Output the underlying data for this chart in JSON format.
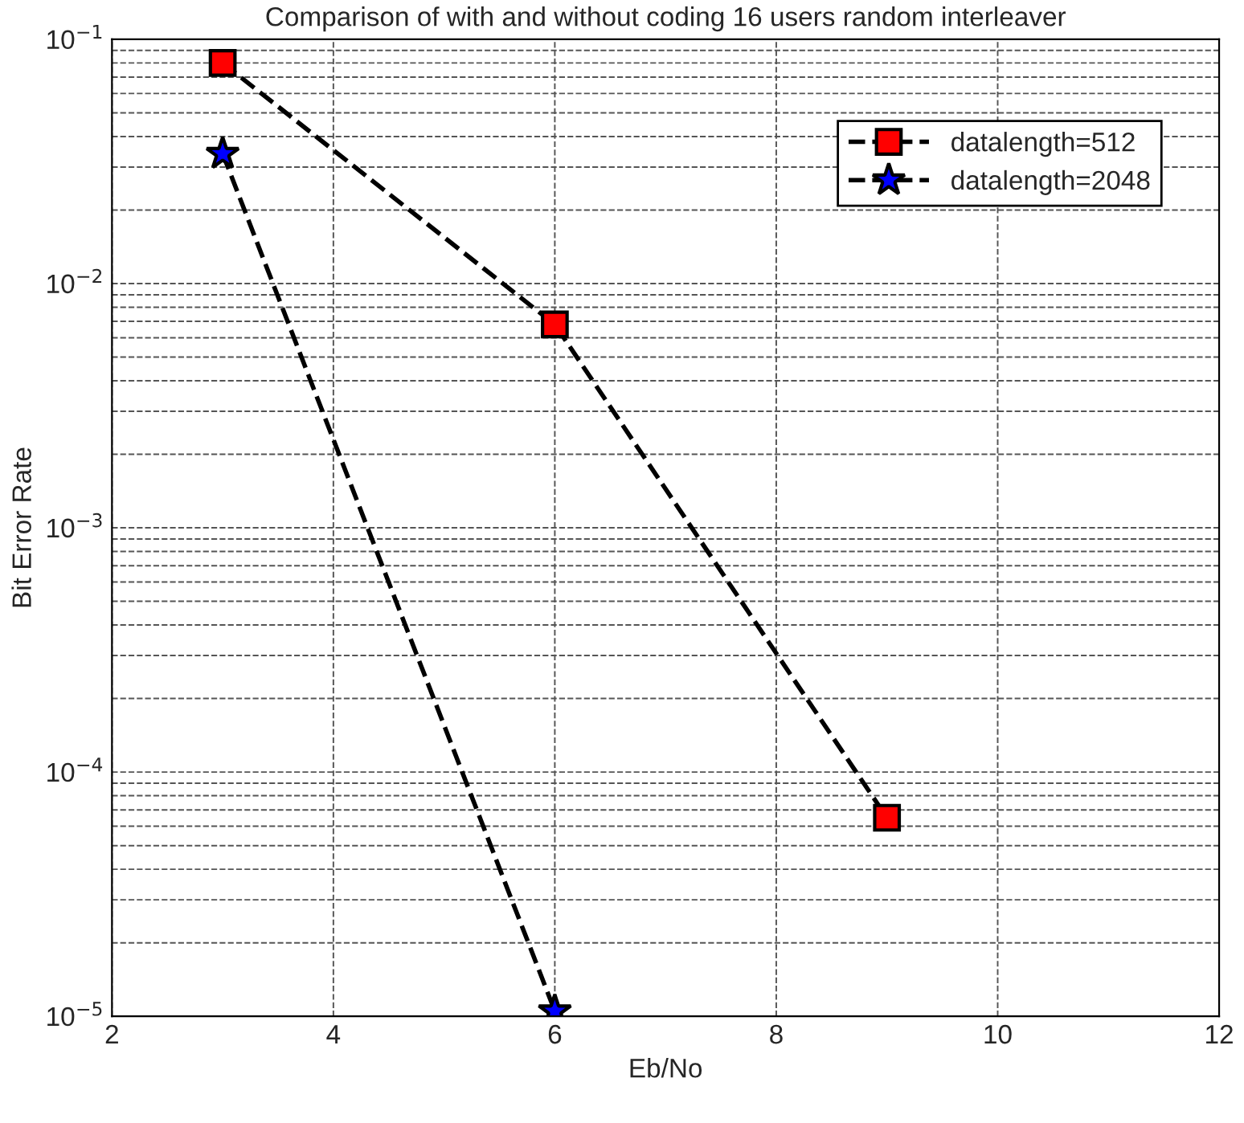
{
  "chart_data": {
    "type": "line",
    "title": "Comparison of with and without coding 16 users random interleaver",
    "xlabel": "Eb/No",
    "ylabel": "Bit Error Rate",
    "x": [
      3,
      6,
      9
    ],
    "series": [
      {
        "name": "datalength=512",
        "color": "#ff0000",
        "marker": "square",
        "values": [
          0.08,
          0.0068,
          6.5e-05
        ]
      },
      {
        "name": "datalength=2048",
        "color": "#0000ff",
        "marker": "star",
        "values": [
          0.034,
          1.05e-05,
          null
        ]
      }
    ],
    "log": "y",
    "xlim": [
      2,
      12
    ],
    "xticks": [
      2,
      4,
      6,
      8,
      10,
      12
    ],
    "ylim": [
      1e-05,
      0.1
    ],
    "yticks": [
      {
        "value": 1e-05,
        "label": "10$^{−5}$"
      },
      {
        "value": 0.0001,
        "label": "10$^{−4}$"
      },
      {
        "value": 0.001,
        "label": "10$^{−3}$"
      },
      {
        "value": 0.01,
        "label": "10$^{−2}$"
      },
      {
        "value": 0.1,
        "label": "10$^{−1}$"
      }
    ],
    "grid": true,
    "legend": "top right",
    "line_style": "dashed"
  }
}
